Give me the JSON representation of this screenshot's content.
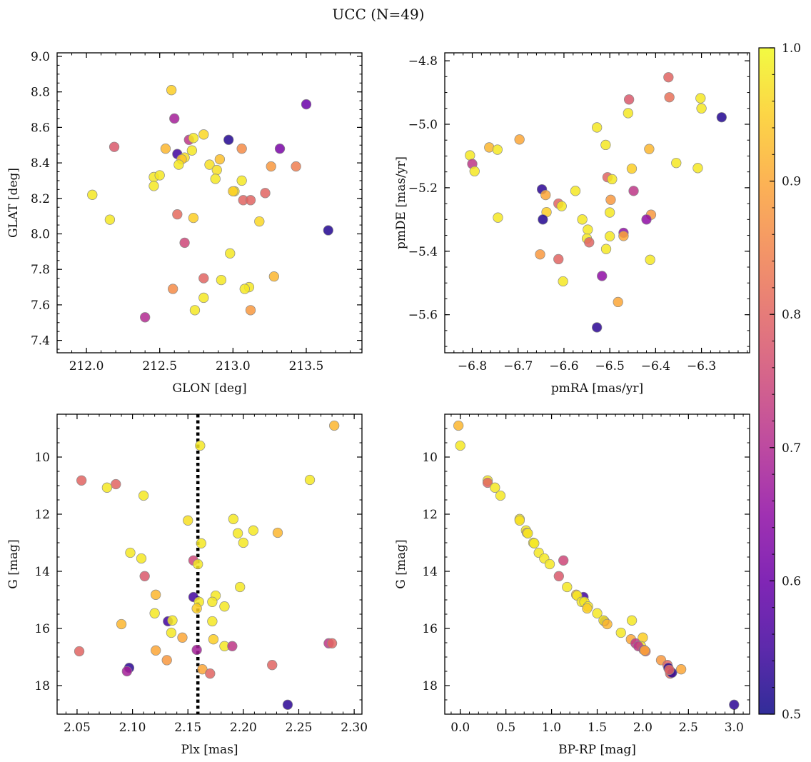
{
  "figure": {
    "title": "UCC (N=49)"
  },
  "colorbar": {
    "range": [
      0.5,
      1.0
    ],
    "ticks": [
      0.5,
      0.6,
      0.7,
      0.8,
      0.9,
      1.0
    ],
    "tick_labels": [
      "0.5",
      "0.6",
      "0.7",
      "0.8",
      "0.9",
      "1.0"
    ],
    "colormap": "plasma"
  },
  "chart_data": [
    {
      "type": "scatter",
      "panel": "top-left",
      "xlabel": "GLON [deg]",
      "ylabel": "GLAT [deg]",
      "xlim": [
        211.8,
        213.88
      ],
      "ylim": [
        7.33,
        9.02
      ],
      "xticks": [
        212.0,
        212.5,
        213.0,
        213.5
      ],
      "xtick_labels": [
        "212.0",
        "212.5",
        "213.0",
        "213.5"
      ],
      "yticks": [
        7.4,
        7.6,
        7.8,
        8.0,
        8.2,
        8.4,
        8.6,
        8.8,
        9.0
      ],
      "ytick_labels": [
        "7.4",
        "7.6",
        "7.8",
        "8.0",
        "8.2",
        "8.4",
        "8.6",
        "8.8",
        "9.0"
      ],
      "points": [
        [
          212.58,
          8.81,
          0.95
        ],
        [
          212.6,
          8.65,
          0.68
        ],
        [
          212.62,
          8.45,
          0.55
        ],
        [
          212.7,
          8.53,
          0.72
        ],
        [
          212.73,
          8.54,
          0.98
        ],
        [
          212.8,
          8.56,
          0.96
        ],
        [
          212.97,
          8.53,
          0.52
        ],
        [
          213.5,
          8.73,
          0.6
        ],
        [
          213.32,
          8.48,
          0.62
        ],
        [
          212.19,
          8.49,
          0.78
        ],
        [
          212.54,
          8.48,
          0.92
        ],
        [
          213.06,
          8.48,
          0.86
        ],
        [
          212.72,
          8.47,
          0.98
        ],
        [
          212.67,
          8.43,
          0.97
        ],
        [
          212.65,
          8.42,
          0.94
        ],
        [
          212.63,
          8.39,
          0.98
        ],
        [
          212.84,
          8.39,
          0.97
        ],
        [
          212.91,
          8.42,
          0.93
        ],
        [
          212.89,
          8.36,
          0.97
        ],
        [
          213.26,
          8.38,
          0.88
        ],
        [
          213.43,
          8.38,
          0.84
        ],
        [
          212.46,
          8.32,
          0.98
        ],
        [
          212.5,
          8.33,
          0.98
        ],
        [
          212.88,
          8.31,
          0.98
        ],
        [
          213.06,
          8.3,
          0.98
        ],
        [
          212.46,
          8.27,
          0.98
        ],
        [
          213.01,
          8.24,
          0.98
        ],
        [
          213.0,
          8.24,
          0.95
        ],
        [
          213.22,
          8.23,
          0.8
        ],
        [
          212.04,
          8.22,
          0.98
        ],
        [
          213.07,
          8.19,
          0.8
        ],
        [
          213.12,
          8.19,
          0.8
        ],
        [
          212.62,
          8.11,
          0.81
        ],
        [
          212.16,
          8.08,
          0.98
        ],
        [
          212.73,
          8.09,
          0.95
        ],
        [
          213.18,
          8.07,
          0.96
        ],
        [
          213.65,
          8.02,
          0.52
        ],
        [
          212.67,
          7.95,
          0.75
        ],
        [
          212.98,
          7.89,
          0.98
        ],
        [
          213.28,
          7.76,
          0.92
        ],
        [
          212.8,
          7.75,
          0.8
        ],
        [
          212.92,
          7.74,
          0.98
        ],
        [
          213.11,
          7.7,
          0.98
        ],
        [
          213.08,
          7.69,
          0.98
        ],
        [
          212.59,
          7.69,
          0.86
        ],
        [
          212.8,
          7.64,
          0.98
        ],
        [
          212.74,
          7.57,
          0.98
        ],
        [
          213.12,
          7.57,
          0.88
        ],
        [
          212.4,
          7.53,
          0.7
        ]
      ]
    },
    {
      "type": "scatter",
      "panel": "top-right",
      "xlabel": "pmRA [mas/yr]",
      "ylabel": "pmDE [mas/yr]",
      "xlim": [
        -6.86,
        -6.195
      ],
      "ylim": [
        -5.72,
        -4.775
      ],
      "xticks": [
        -6.8,
        -6.7,
        -6.6,
        -6.5,
        -6.4,
        -6.3
      ],
      "xtick_labels": [
        "−6.8",
        "−6.7",
        "−6.6",
        "−6.5",
        "−6.4",
        "−6.3"
      ],
      "yticks": [
        -5.6,
        -5.4,
        -5.2,
        -5.0,
        -4.8
      ],
      "ytick_labels": [
        "−5.6",
        "−5.4",
        "−5.2",
        "−5.0",
        "−4.8"
      ],
      "points": [
        [
          -6.372,
          -4.852,
          0.8
        ],
        [
          -6.37,
          -4.915,
          0.82
        ],
        [
          -6.458,
          -4.922,
          0.78
        ],
        [
          -6.302,
          -4.918,
          0.98
        ],
        [
          -6.3,
          -4.95,
          0.98
        ],
        [
          -6.46,
          -4.965,
          0.98
        ],
        [
          -6.256,
          -4.978,
          0.52
        ],
        [
          -6.528,
          -5.01,
          0.98
        ],
        [
          -6.697,
          -5.048,
          0.9
        ],
        [
          -6.509,
          -5.065,
          0.98
        ],
        [
          -6.763,
          -5.073,
          0.92
        ],
        [
          -6.745,
          -5.08,
          0.98
        ],
        [
          -6.414,
          -5.078,
          0.92
        ],
        [
          -6.805,
          -5.098,
          0.98
        ],
        [
          -6.355,
          -5.122,
          0.98
        ],
        [
          -6.8,
          -5.125,
          0.72
        ],
        [
          -6.308,
          -5.138,
          0.98
        ],
        [
          -6.795,
          -5.148,
          0.98
        ],
        [
          -6.452,
          -5.14,
          0.95
        ],
        [
          -6.505,
          -5.167,
          0.8
        ],
        [
          -6.495,
          -5.173,
          0.98
        ],
        [
          -6.648,
          -5.205,
          0.53
        ],
        [
          -6.575,
          -5.21,
          0.98
        ],
        [
          -6.448,
          -5.21,
          0.72
        ],
        [
          -6.64,
          -5.223,
          0.9
        ],
        [
          -6.498,
          -5.238,
          0.88
        ],
        [
          -6.612,
          -5.25,
          0.8
        ],
        [
          -6.605,
          -5.258,
          0.98
        ],
        [
          -6.638,
          -5.277,
          0.95
        ],
        [
          -6.5,
          -5.278,
          0.98
        ],
        [
          -6.41,
          -5.285,
          0.88
        ],
        [
          -6.744,
          -5.294,
          0.98
        ],
        [
          -6.646,
          -5.3,
          0.52
        ],
        [
          -6.56,
          -5.3,
          0.98
        ],
        [
          -6.42,
          -5.3,
          0.65
        ],
        [
          -6.548,
          -5.332,
          0.98
        ],
        [
          -6.47,
          -5.342,
          0.65
        ],
        [
          -6.47,
          -5.352,
          0.9
        ],
        [
          -6.5,
          -5.353,
          0.98
        ],
        [
          -6.55,
          -5.36,
          0.98
        ],
        [
          -6.545,
          -5.372,
          0.8
        ],
        [
          -6.508,
          -5.393,
          0.98
        ],
        [
          -6.652,
          -5.41,
          0.88
        ],
        [
          -6.612,
          -5.425,
          0.8
        ],
        [
          -6.412,
          -5.427,
          0.98
        ],
        [
          -6.517,
          -5.478,
          0.65
        ],
        [
          -6.602,
          -5.495,
          0.98
        ],
        [
          -6.482,
          -5.56,
          0.9
        ],
        [
          -6.528,
          -5.64,
          0.53
        ]
      ]
    },
    {
      "type": "scatter",
      "panel": "bottom-left",
      "xlabel": "Plx [mas]",
      "ylabel": "G [mag]",
      "xlim": [
        2.032,
        2.307
      ],
      "ylim": [
        19.0,
        8.5
      ],
      "y_inverted": true,
      "xticks": [
        2.05,
        2.1,
        2.15,
        2.2,
        2.25,
        2.3
      ],
      "xtick_labels": [
        "2.05",
        "2.10",
        "2.15",
        "2.20",
        "2.25",
        "2.30"
      ],
      "yticks": [
        10,
        12,
        14,
        16,
        18
      ],
      "ytick_labels": [
        "10",
        "12",
        "14",
        "16",
        "18"
      ],
      "vline": {
        "x": 2.159,
        "style": "dotted"
      },
      "points": [
        [
          2.282,
          8.9,
          0.92
        ],
        [
          2.161,
          9.6,
          0.98
        ],
        [
          2.054,
          10.82,
          0.8
        ],
        [
          2.085,
          10.95,
          0.8
        ],
        [
          2.077,
          11.07,
          0.98
        ],
        [
          2.26,
          10.8,
          0.98
        ],
        [
          2.11,
          11.35,
          0.98
        ],
        [
          2.15,
          12.22,
          0.97
        ],
        [
          2.191,
          12.17,
          0.98
        ],
        [
          2.195,
          12.67,
          0.98
        ],
        [
          2.209,
          12.57,
          0.98
        ],
        [
          2.231,
          12.65,
          0.92
        ],
        [
          2.162,
          13.02,
          0.98
        ],
        [
          2.2,
          13.0,
          0.98
        ],
        [
          2.098,
          13.35,
          0.98
        ],
        [
          2.108,
          13.55,
          0.98
        ],
        [
          2.155,
          13.62,
          0.75
        ],
        [
          2.159,
          13.75,
          0.98
        ],
        [
          2.111,
          14.17,
          0.78
        ],
        [
          2.197,
          14.55,
          0.98
        ],
        [
          2.155,
          14.9,
          0.55
        ],
        [
          2.121,
          14.82,
          0.92
        ],
        [
          2.175,
          14.85,
          0.98
        ],
        [
          2.16,
          15.07,
          0.98
        ],
        [
          2.172,
          15.07,
          0.98
        ],
        [
          2.183,
          15.23,
          0.98
        ],
        [
          2.158,
          15.3,
          0.95
        ],
        [
          2.12,
          15.47,
          0.98
        ],
        [
          2.132,
          15.75,
          0.55
        ],
        [
          2.136,
          15.72,
          0.98
        ],
        [
          2.172,
          15.75,
          0.98
        ],
        [
          2.09,
          15.85,
          0.92
        ],
        [
          2.135,
          16.15,
          0.98
        ],
        [
          2.145,
          16.32,
          0.9
        ],
        [
          2.173,
          16.38,
          0.95
        ],
        [
          2.183,
          16.62,
          0.98
        ],
        [
          2.19,
          16.62,
          0.72
        ],
        [
          2.277,
          16.52,
          0.72
        ],
        [
          2.28,
          16.52,
          0.8
        ],
        [
          2.052,
          16.8,
          0.8
        ],
        [
          2.121,
          16.77,
          0.9
        ],
        [
          2.158,
          16.75,
          0.68
        ],
        [
          2.131,
          17.11,
          0.88
        ],
        [
          2.226,
          17.28,
          0.8
        ],
        [
          2.163,
          17.43,
          0.9
        ],
        [
          2.097,
          17.38,
          0.53
        ],
        [
          2.095,
          17.5,
          0.68
        ],
        [
          2.17,
          17.58,
          0.8
        ],
        [
          2.24,
          18.67,
          0.53
        ]
      ]
    },
    {
      "type": "scatter",
      "panel": "bottom-right",
      "xlabel": "BP-RP [mag]",
      "ylabel": "G [mag]",
      "xlim": [
        -0.17,
        3.17
      ],
      "ylim": [
        19.0,
        8.5
      ],
      "y_inverted": true,
      "xticks": [
        0.0,
        0.5,
        1.0,
        1.5,
        2.0,
        2.5,
        3.0
      ],
      "xtick_labels": [
        "0.0",
        "0.5",
        "1.0",
        "1.5",
        "2.0",
        "2.5",
        "3.0"
      ],
      "yticks": [
        10,
        12,
        14,
        16,
        18
      ],
      "ytick_labels": [
        "10",
        "12",
        "14",
        "16",
        "18"
      ],
      "points": [
        [
          -0.02,
          8.9,
          0.92
        ],
        [
          0.0,
          9.6,
          0.98
        ],
        [
          0.3,
          10.82,
          0.98
        ],
        [
          0.3,
          10.9,
          0.8
        ],
        [
          0.38,
          11.07,
          0.98
        ],
        [
          0.44,
          11.35,
          0.98
        ],
        [
          0.65,
          12.17,
          0.98
        ],
        [
          0.65,
          12.22,
          0.97
        ],
        [
          0.72,
          12.57,
          0.98
        ],
        [
          0.73,
          12.65,
          0.92
        ],
        [
          0.74,
          12.67,
          0.98
        ],
        [
          0.8,
          13.0,
          0.98
        ],
        [
          0.81,
          13.02,
          0.98
        ],
        [
          0.86,
          13.35,
          0.98
        ],
        [
          0.92,
          13.55,
          0.98
        ],
        [
          1.13,
          13.62,
          0.75
        ],
        [
          0.98,
          13.75,
          0.98
        ],
        [
          1.08,
          14.17,
          0.78
        ],
        [
          1.17,
          14.55,
          0.98
        ],
        [
          1.35,
          14.9,
          0.55
        ],
        [
          1.27,
          14.82,
          0.92
        ],
        [
          1.28,
          14.85,
          0.98
        ],
        [
          1.33,
          15.07,
          0.98
        ],
        [
          1.36,
          15.07,
          0.98
        ],
        [
          1.4,
          15.23,
          0.98
        ],
        [
          1.39,
          15.3,
          0.95
        ],
        [
          1.5,
          15.47,
          0.98
        ],
        [
          1.58,
          15.75,
          0.55
        ],
        [
          1.57,
          15.72,
          0.98
        ],
        [
          1.61,
          15.85,
          0.92
        ],
        [
          1.88,
          15.72,
          0.98
        ],
        [
          1.76,
          16.15,
          0.98
        ],
        [
          1.87,
          16.38,
          0.9
        ],
        [
          2.0,
          16.32,
          0.95
        ],
        [
          1.92,
          16.52,
          0.72
        ],
        [
          1.98,
          16.62,
          0.98
        ],
        [
          1.95,
          16.62,
          0.72
        ],
        [
          2.01,
          16.75,
          0.68
        ],
        [
          2.03,
          16.8,
          0.8
        ],
        [
          2.02,
          16.77,
          0.9
        ],
        [
          2.2,
          17.11,
          0.88
        ],
        [
          2.27,
          17.28,
          0.8
        ],
        [
          2.28,
          17.38,
          0.53
        ],
        [
          2.3,
          17.5,
          0.68
        ],
        [
          2.42,
          17.43,
          0.9
        ],
        [
          2.3,
          17.58,
          0.8
        ],
        [
          2.32,
          17.55,
          0.53
        ],
        [
          3.0,
          18.67,
          0.53
        ],
        [
          2.29,
          17.45,
          0.8
        ]
      ]
    }
  ]
}
